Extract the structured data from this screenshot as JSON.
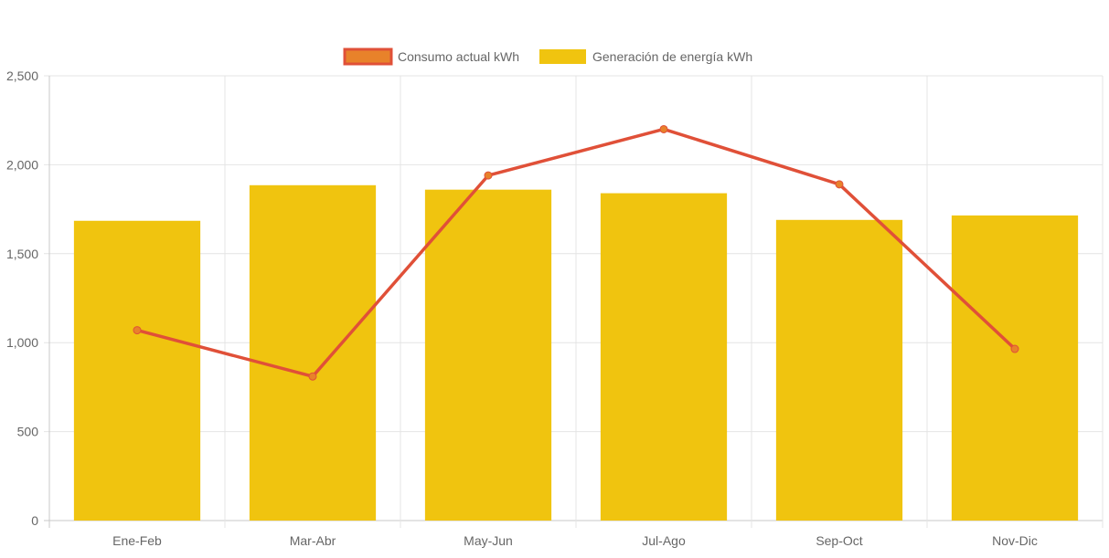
{
  "chart_data": {
    "type": "bar",
    "categories": [
      "Ene-Feb",
      "Mar-Abr",
      "May-Jun",
      "Jul-Ago",
      "Sep-Oct",
      "Nov-Dic"
    ],
    "series": [
      {
        "name": "Consumo actual kWh",
        "type": "line",
        "values": [
          1070,
          810,
          1940,
          2200,
          1890,
          965
        ],
        "color": "#e05038",
        "point_color": "#e8822a"
      },
      {
        "name": "Generación de energía kWh",
        "type": "bar",
        "values": [
          1685,
          1885,
          1860,
          1840,
          1690,
          1715
        ],
        "color": "#f0c40f"
      }
    ],
    "ylim": [
      0,
      2500
    ],
    "yticks": [
      "0",
      "500",
      "1,000",
      "1,500",
      "2,000",
      "2,500"
    ],
    "ytick_values": [
      0,
      500,
      1000,
      1500,
      2000,
      2500
    ],
    "legend_position": "top-center",
    "grid": true
  }
}
